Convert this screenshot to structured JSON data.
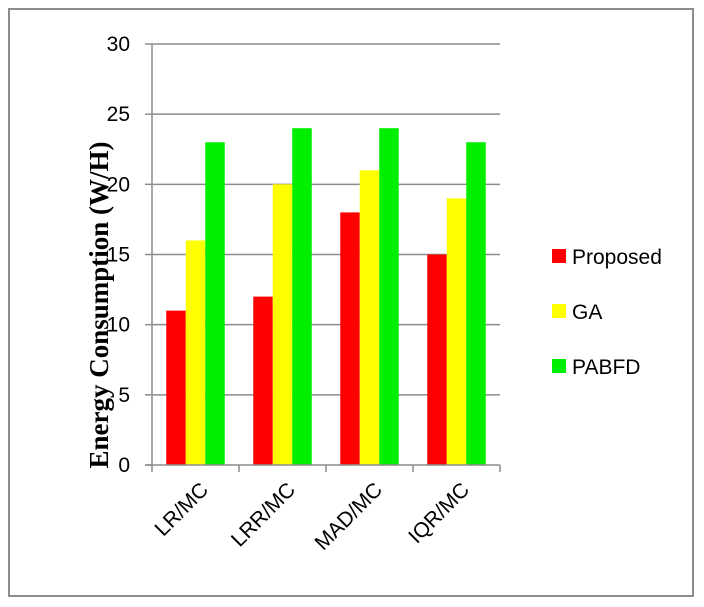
{
  "chart_data": {
    "type": "bar",
    "title": "",
    "xlabel": "",
    "ylabel": "Energy Consumption (W/H)",
    "categories": [
      "LR/MC",
      "LRR/MC",
      "MAD/MC",
      "IQR/MC"
    ],
    "series": [
      {
        "name": "Proposed",
        "color": "#ff0000",
        "values": [
          11,
          12,
          18,
          15
        ]
      },
      {
        "name": "GA",
        "color": "#ffff00",
        "values": [
          16,
          20,
          21,
          19
        ]
      },
      {
        "name": "PABFD",
        "color": "#00ee00",
        "values": [
          23,
          24,
          24,
          23
        ]
      }
    ],
    "ylim": [
      0,
      30
    ],
    "yticks": [
      0,
      5,
      10,
      15,
      20,
      25,
      30
    ],
    "grid": true,
    "legend_position": "right"
  }
}
